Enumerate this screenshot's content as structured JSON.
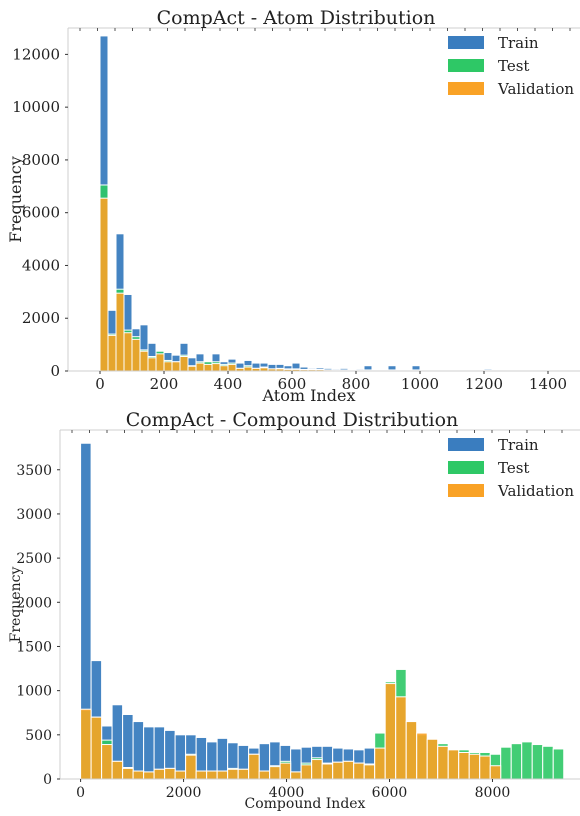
{
  "chart_data": [
    {
      "type": "bar",
      "title": "CompAct - Atom Distribution",
      "xlabel": "Atom Index",
      "ylabel": "Frequency",
      "xlim": [
        -100,
        1500
      ],
      "ylim": [
        0,
        13000
      ],
      "xticks": [
        0,
        200,
        400,
        600,
        800,
        1000,
        1200,
        1400
      ],
      "yticks": [
        0,
        2000,
        4000,
        6000,
        8000,
        10000,
        12000
      ],
      "grid": false,
      "legend_position": "top-right",
      "series": [
        {
          "name": "Train",
          "color": "#3a7dbf",
          "bin_width": 25,
          "x": [
            0,
            25,
            50,
            75,
            100,
            125,
            150,
            175,
            200,
            225,
            250,
            275,
            300,
            325,
            350,
            375,
            400,
            425,
            450,
            475,
            500,
            525,
            550,
            575,
            600,
            625,
            650,
            675,
            700,
            725,
            750,
            775,
            800,
            825,
            850,
            875,
            900,
            925,
            950,
            975,
            1000,
            1025,
            1050,
            1075,
            1100,
            1125,
            1150,
            1175,
            1200,
            1225,
            1250,
            1275,
            1300,
            1325,
            1350,
            1375
          ],
          "values": [
            12700,
            2300,
            5200,
            2900,
            1600,
            1750,
            1050,
            750,
            700,
            600,
            1050,
            500,
            650,
            350,
            650,
            350,
            450,
            300,
            400,
            300,
            300,
            250,
            250,
            200,
            300,
            150,
            100,
            120,
            100,
            80,
            100,
            60,
            80,
            200,
            60,
            60,
            200,
            60,
            60,
            200,
            40,
            30,
            30,
            30,
            30,
            40,
            40,
            40,
            80,
            30,
            30,
            30,
            30,
            30,
            30,
            30
          ]
        },
        {
          "name": "Test",
          "color": "#2ec866",
          "bin_width": 25,
          "x": [
            0,
            25,
            50,
            75,
            100,
            125,
            150,
            175,
            200,
            225,
            250,
            275,
            300,
            325,
            350,
            375,
            400,
            425,
            450,
            475,
            500,
            525,
            550,
            575,
            600,
            625,
            650,
            675,
            700,
            725,
            750,
            775,
            800,
            825,
            850,
            875,
            900,
            925,
            950,
            975,
            1000,
            1025,
            1050,
            1075,
            1100,
            1125,
            1150,
            1175,
            1200
          ],
          "values": [
            7050,
            1400,
            3100,
            1550,
            1300,
            800,
            550,
            750,
            400,
            350,
            600,
            200,
            350,
            350,
            350,
            250,
            300,
            100,
            200,
            100,
            150,
            80,
            100,
            80,
            80,
            60,
            60,
            60,
            40,
            40,
            40,
            40,
            40,
            40,
            40,
            40,
            40,
            40,
            40,
            40,
            40,
            30,
            30,
            30,
            30,
            30,
            30,
            30,
            30
          ]
        },
        {
          "name": "Validation",
          "color": "#f9a226",
          "bin_width": 25,
          "x": [
            0,
            25,
            50,
            75,
            100,
            125,
            150,
            175,
            200,
            225,
            250,
            275,
            300,
            325,
            350,
            375,
            400,
            425,
            450,
            475,
            500,
            525,
            550,
            575,
            600,
            625,
            650,
            675,
            700,
            725,
            750,
            775,
            800,
            825,
            850,
            875,
            900,
            925,
            950,
            975,
            1000,
            1025,
            1050,
            1075,
            1100,
            1125,
            1150,
            1175,
            1200
          ],
          "values": [
            6550,
            1350,
            2950,
            1450,
            1200,
            750,
            500,
            650,
            350,
            350,
            550,
            180,
            300,
            250,
            280,
            200,
            250,
            100,
            150,
            100,
            120,
            80,
            80,
            60,
            60,
            50,
            50,
            50,
            40,
            30,
            30,
            30,
            30,
            30,
            30,
            30,
            30,
            30,
            30,
            30,
            30,
            30,
            30,
            30,
            30,
            30,
            30,
            30,
            30
          ]
        }
      ]
    },
    {
      "type": "bar",
      "title": "CompAct - Compound Distribution",
      "xlabel": "Compound Index",
      "ylabel": "Frequency",
      "xlim": [
        -400,
        9700
      ],
      "ylim": [
        0,
        3950
      ],
      "xticks": [
        0,
        2000,
        4000,
        6000,
        8000
      ],
      "yticks": [
        0,
        500,
        1000,
        1500,
        2000,
        2500,
        3000,
        3500
      ],
      "grid": false,
      "legend_position": "top-right",
      "series": [
        {
          "name": "Train",
          "color": "#3a7dbf",
          "bin_width": 204,
          "x": [
            0,
            204,
            408,
            612,
            816,
            1020,
            1224,
            1428,
            1632,
            1836,
            2040,
            2244,
            2448,
            2652,
            2856,
            3060,
            3264,
            3468,
            3672,
            3876,
            4080,
            4284,
            4488,
            4692,
            4896,
            5100,
            5304,
            5508
          ],
          "values": [
            3800,
            1340,
            600,
            840,
            730,
            650,
            590,
            590,
            550,
            500,
            500,
            470,
            420,
            460,
            410,
            380,
            350,
            400,
            420,
            380,
            340,
            360,
            370,
            370,
            350,
            340,
            330,
            350
          ]
        },
        {
          "name": "Test",
          "color": "#2ec866",
          "bin_width": 204,
          "x": [
            0,
            204,
            408,
            612,
            816,
            1020,
            1224,
            1428,
            1632,
            1836,
            2040,
            2244,
            2448,
            2652,
            2856,
            3060,
            3264,
            3468,
            3672,
            3876,
            4080,
            4284,
            4488,
            4692,
            4896,
            5100,
            5304,
            5508,
            5712,
            5916,
            6120,
            6324,
            6528,
            6732,
            6936,
            7140,
            7344,
            7548,
            7752,
            7956,
            8160,
            8364,
            8568,
            8772,
            8976,
            9180
          ],
          "values": [
            780,
            700,
            440,
            200,
            130,
            90,
            80,
            110,
            120,
            90,
            280,
            90,
            90,
            90,
            120,
            110,
            280,
            90,
            150,
            200,
            80,
            180,
            240,
            180,
            190,
            200,
            180,
            170,
            520,
            1100,
            1240,
            650,
            500,
            450,
            400,
            330,
            330,
            300,
            300,
            280,
            360,
            400,
            420,
            390,
            370,
            340
          ]
        },
        {
          "name": "Validation",
          "color": "#f9a226",
          "bin_width": 204,
          "x": [
            0,
            204,
            408,
            612,
            816,
            1020,
            1224,
            1428,
            1632,
            1836,
            2040,
            2244,
            2448,
            2652,
            2856,
            3060,
            3264,
            3468,
            3672,
            3876,
            4080,
            4284,
            4488,
            4692,
            4896,
            5100,
            5304,
            5508,
            5712,
            5916,
            6120,
            6324,
            6528,
            6732,
            6936,
            7140,
            7344,
            7548,
            7752,
            7956
          ],
          "values": [
            790,
            700,
            390,
            200,
            120,
            90,
            80,
            110,
            120,
            90,
            270,
            90,
            90,
            90,
            110,
            110,
            280,
            90,
            140,
            180,
            80,
            160,
            220,
            170,
            190,
            200,
            180,
            160,
            350,
            1080,
            930,
            650,
            520,
            450,
            370,
            330,
            300,
            280,
            260,
            150
          ]
        }
      ]
    }
  ]
}
